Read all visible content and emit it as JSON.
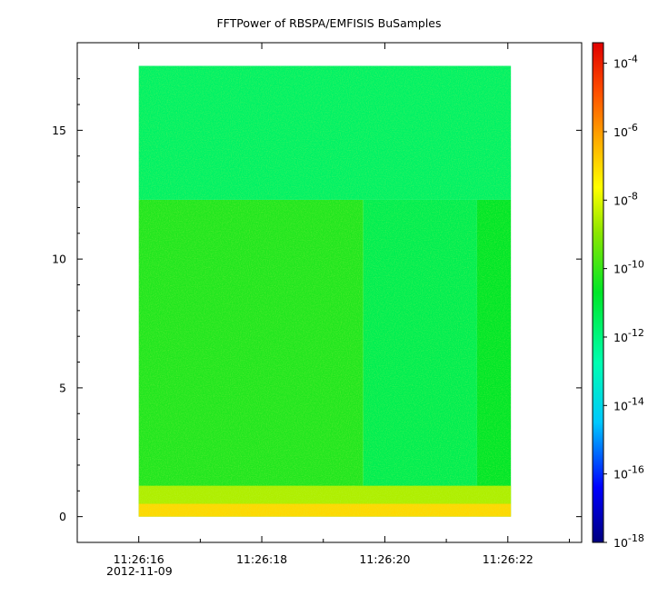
{
  "chart_data": {
    "type": "heatmap",
    "title": "FFTPower of RBSPA/EMFISIS  BuSamples",
    "xlabel": "",
    "ylabel": "",
    "date_label": "2012-11-09",
    "x_tick_labels": [
      "11:26:16",
      "11:26:18",
      "11:26:20",
      "11:26:22"
    ],
    "x_tick_values_sec": [
      16,
      18,
      20,
      22
    ],
    "x_minor_tick_values_sec": [
      17,
      19,
      21,
      23
    ],
    "xlim_sec": [
      15.0,
      23.2
    ],
    "data_x_range_sec": [
      16.0,
      22.05
    ],
    "ylim": [
      -1,
      18.4
    ],
    "y_ticks": [
      0,
      5,
      10,
      15
    ],
    "y_tick_labels": [
      "0",
      "5",
      "10",
      "15"
    ],
    "data_y_range": [
      0,
      17.5
    ],
    "colorbar": {
      "scale": "log",
      "range_exp": [
        -18,
        -3.4
      ],
      "tick_exponents": [
        -4,
        -6,
        -8,
        -10,
        -12,
        -14,
        -16,
        -18
      ],
      "tick_labels": [
        {
          "base": "10",
          "exp": "-4"
        },
        {
          "base": "10",
          "exp": "-6"
        },
        {
          "base": "10",
          "exp": "-8"
        },
        {
          "base": "10",
          "exp": "-10"
        },
        {
          "base": "10",
          "exp": "-12"
        },
        {
          "base": "10",
          "exp": "-14"
        },
        {
          "base": "10",
          "exp": "-16"
        },
        {
          "base": "10",
          "exp": "-18"
        }
      ],
      "colormap": "rainbow (dark blue to red)"
    },
    "regions": [
      {
        "x_sec": [
          16.0,
          19.65
        ],
        "y": [
          0,
          12.3
        ],
        "log_power": -10.3
      },
      {
        "x_sec": [
          19.65,
          21.5
        ],
        "y": [
          0,
          12.3
        ],
        "log_power": -11.3
      },
      {
        "x_sec": [
          21.5,
          22.05
        ],
        "y": [
          0,
          12.3
        ],
        "log_power": -10.7
      },
      {
        "x_sec": [
          16.0,
          22.05
        ],
        "y": [
          12.3,
          17.5
        ],
        "log_power": -11.6
      },
      {
        "x_sec": [
          16.0,
          22.05
        ],
        "y": [
          0.5,
          1.2
        ],
        "log_power": -8.6
      },
      {
        "x_sec": [
          16.0,
          22.05
        ],
        "y": [
          0,
          0.5
        ],
        "log_power": -7.0
      }
    ],
    "colors": {
      "background_hot": "#ff0000",
      "plot_frame": "#000000"
    }
  }
}
